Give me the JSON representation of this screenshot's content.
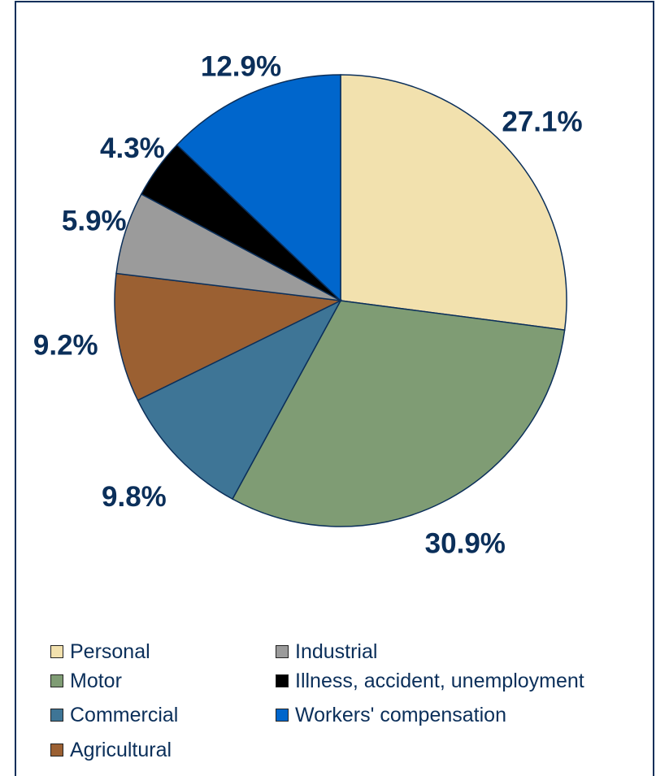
{
  "chart_data": {
    "type": "pie",
    "title": "",
    "slices": [
      {
        "label": "Personal",
        "value": 27.1,
        "display": "27.1%",
        "color": "#f2e1ae"
      },
      {
        "label": "Motor",
        "value": 30.9,
        "display": "30.9%",
        "color": "#7f9c74"
      },
      {
        "label": "Commercial",
        "value": 9.8,
        "display": "9.8%",
        "color": "#3e7596"
      },
      {
        "label": "Agricultural",
        "value": 9.2,
        "display": "9.2%",
        "color": "#9b6032"
      },
      {
        "label": "Industrial",
        "value": 5.9,
        "display": "5.9%",
        "color": "#9b9b9b"
      },
      {
        "label": "Illness, accident, unemployment",
        "value": 4.3,
        "display": "4.3%",
        "color": "#000000"
      },
      {
        "label": "Workers' compensation",
        "value": 12.9,
        "display": "12.9%",
        "color": "#0066cc"
      }
    ],
    "legend_placement": "bottom",
    "label_color": "#0b2f5a",
    "border_color": "#0b2f5a"
  }
}
